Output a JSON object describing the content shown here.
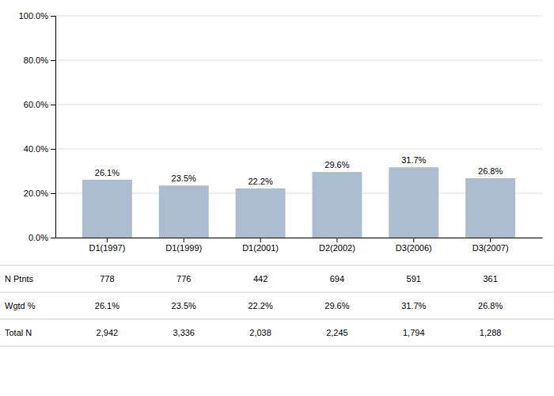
{
  "chart_data": {
    "type": "bar",
    "categories": [
      "D1(1997)",
      "D1(1999)",
      "D1(2001)",
      "D2(2002)",
      "D3(2006)",
      "D3(2007)"
    ],
    "values": [
      26.1,
      23.5,
      22.2,
      29.6,
      31.7,
      26.8
    ],
    "value_labels": [
      "26.1%",
      "23.5%",
      "22.2%",
      "29.6%",
      "31.7%",
      "26.8%"
    ],
    "data_labels": true,
    "color": "#adbdd0",
    "ylim": [
      0,
      100
    ],
    "yticks": [
      {
        "value": 0,
        "label": "0.0%"
      },
      {
        "value": 20,
        "label": "20.0%"
      },
      {
        "value": 40,
        "label": "40.0%"
      },
      {
        "value": 60,
        "label": "60.0%"
      },
      {
        "value": 80,
        "label": "80.0%"
      },
      {
        "value": 100,
        "label": "100.0%"
      }
    ],
    "grid": true,
    "table": {
      "row_labels": [
        "N Ptnts",
        "Wgtd %",
        "Total N"
      ],
      "rows": [
        [
          778,
          776,
          442,
          694,
          591,
          361
        ],
        [
          {
            "value": 26.1,
            "label": "26.1%"
          },
          {
            "value": 23.5,
            "label": "23.5%"
          },
          {
            "value": 22.2,
            "label": "22.2%"
          },
          {
            "value": 29.6,
            "label": "29.6%"
          },
          {
            "value": 31.7,
            "label": "31.7%"
          },
          {
            "value": 26.8,
            "label": "26.8%"
          }
        ],
        [
          {
            "value": 2942,
            "label": "2,942"
          },
          {
            "value": 3336,
            "label": "3,336"
          },
          {
            "value": 2038,
            "label": "2,038"
          },
          {
            "value": 2245,
            "label": "2,245"
          },
          {
            "value": 1794,
            "label": "1,794"
          },
          {
            "value": 1288,
            "label": "1,288"
          }
        ]
      ]
    }
  }
}
